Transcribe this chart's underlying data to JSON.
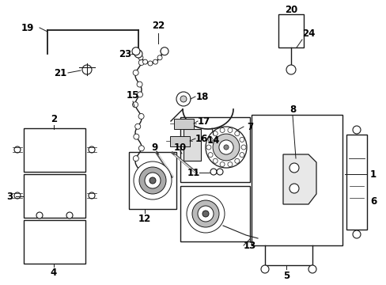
{
  "bg_color": "#ffffff",
  "line_color": "#1a1a1a",
  "label_color": "#000000",
  "label_fontsize": 8.5,
  "figsize": [
    4.89,
    3.6
  ],
  "dpi": 100
}
